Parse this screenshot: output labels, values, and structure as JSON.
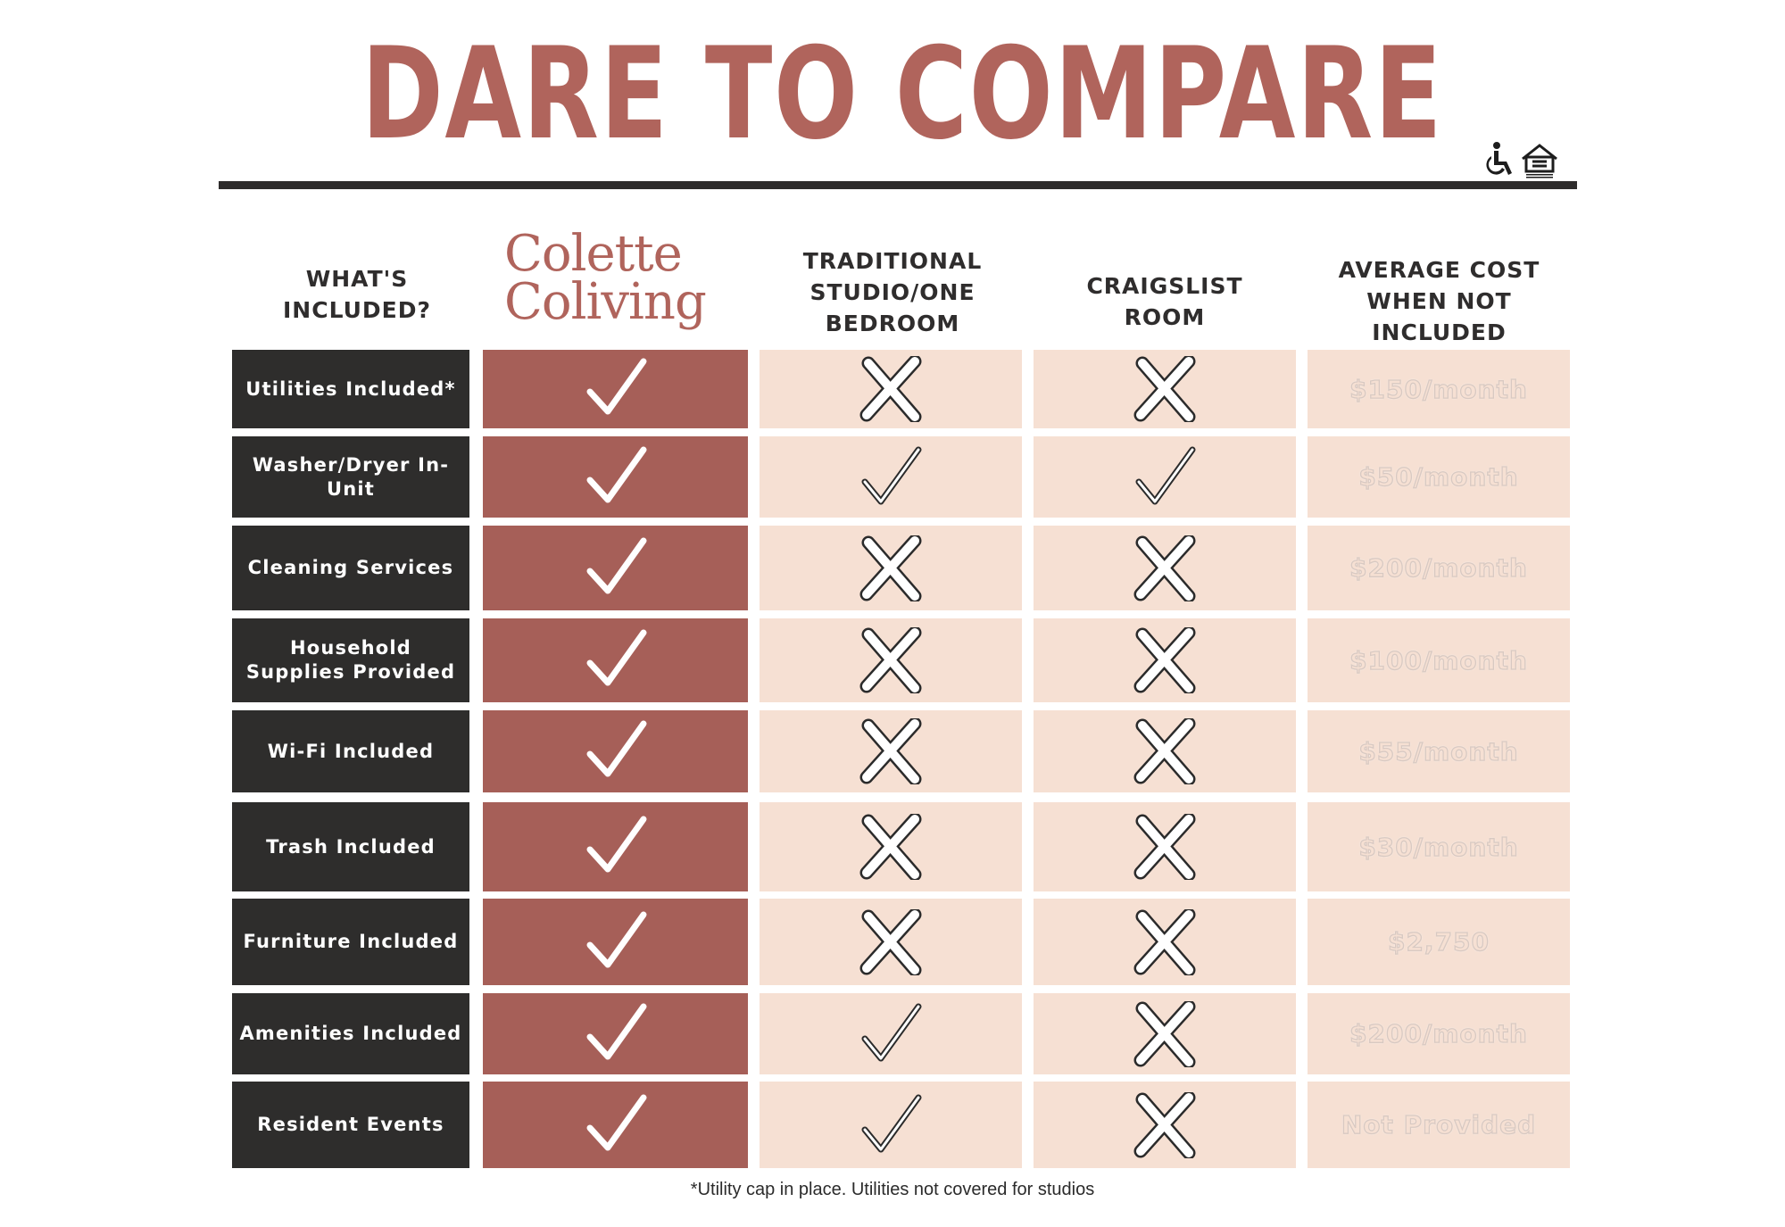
{
  "title": "DARE TO COMPARE",
  "icons": [
    "accessibility-icon",
    "equal-housing-icon"
  ],
  "headers": {
    "included": "WHAT'S INCLUDED?",
    "brand_line1": "Colette",
    "brand_line2": "Coliving",
    "traditional": "TRADITIONAL STUDIO/ONE BEDROOM",
    "craigslist": "CRAIGSLIST ROOM",
    "cost": "AVERAGE COST WHEN NOT INCLUDED"
  },
  "rows": [
    {
      "feature": "Utilities Included*",
      "colette": "check",
      "traditional": "cross",
      "craigslist": "cross",
      "cost": "$150/month"
    },
    {
      "feature": "Washer/Dryer In-Unit",
      "colette": "check",
      "traditional": "check",
      "craigslist": "check",
      "cost": "$50/month"
    },
    {
      "feature": "Cleaning Services",
      "colette": "check",
      "traditional": "cross",
      "craigslist": "cross",
      "cost": "$200/month"
    },
    {
      "feature": "Household Supplies Provided",
      "colette": "check",
      "traditional": "cross",
      "craigslist": "cross",
      "cost": "$100/month"
    },
    {
      "feature": "Wi-Fi Included",
      "colette": "check",
      "traditional": "cross",
      "craigslist": "cross",
      "cost": "$55/month"
    },
    {
      "feature": "Trash Included",
      "colette": "check",
      "traditional": "cross",
      "craigslist": "cross",
      "cost": "$30/month"
    },
    {
      "feature": "Furniture Included",
      "colette": "check",
      "traditional": "cross",
      "craigslist": "cross",
      "cost": "$2,750"
    },
    {
      "feature": "Amenities Included",
      "colette": "check",
      "traditional": "check",
      "craigslist": "cross",
      "cost": "$200/month"
    },
    {
      "feature": "Resident Events",
      "colette": "check",
      "traditional": "check",
      "craigslist": "cross",
      "cost": "Not Provided"
    }
  ],
  "footnote": "*Utility cap in place. Utilities not covered for studios",
  "colors": {
    "brand": "#b0645c",
    "colette_cell": "#a65f58",
    "feature_cell": "#2e2d2c",
    "peach_cell": "#f6e0d3"
  }
}
